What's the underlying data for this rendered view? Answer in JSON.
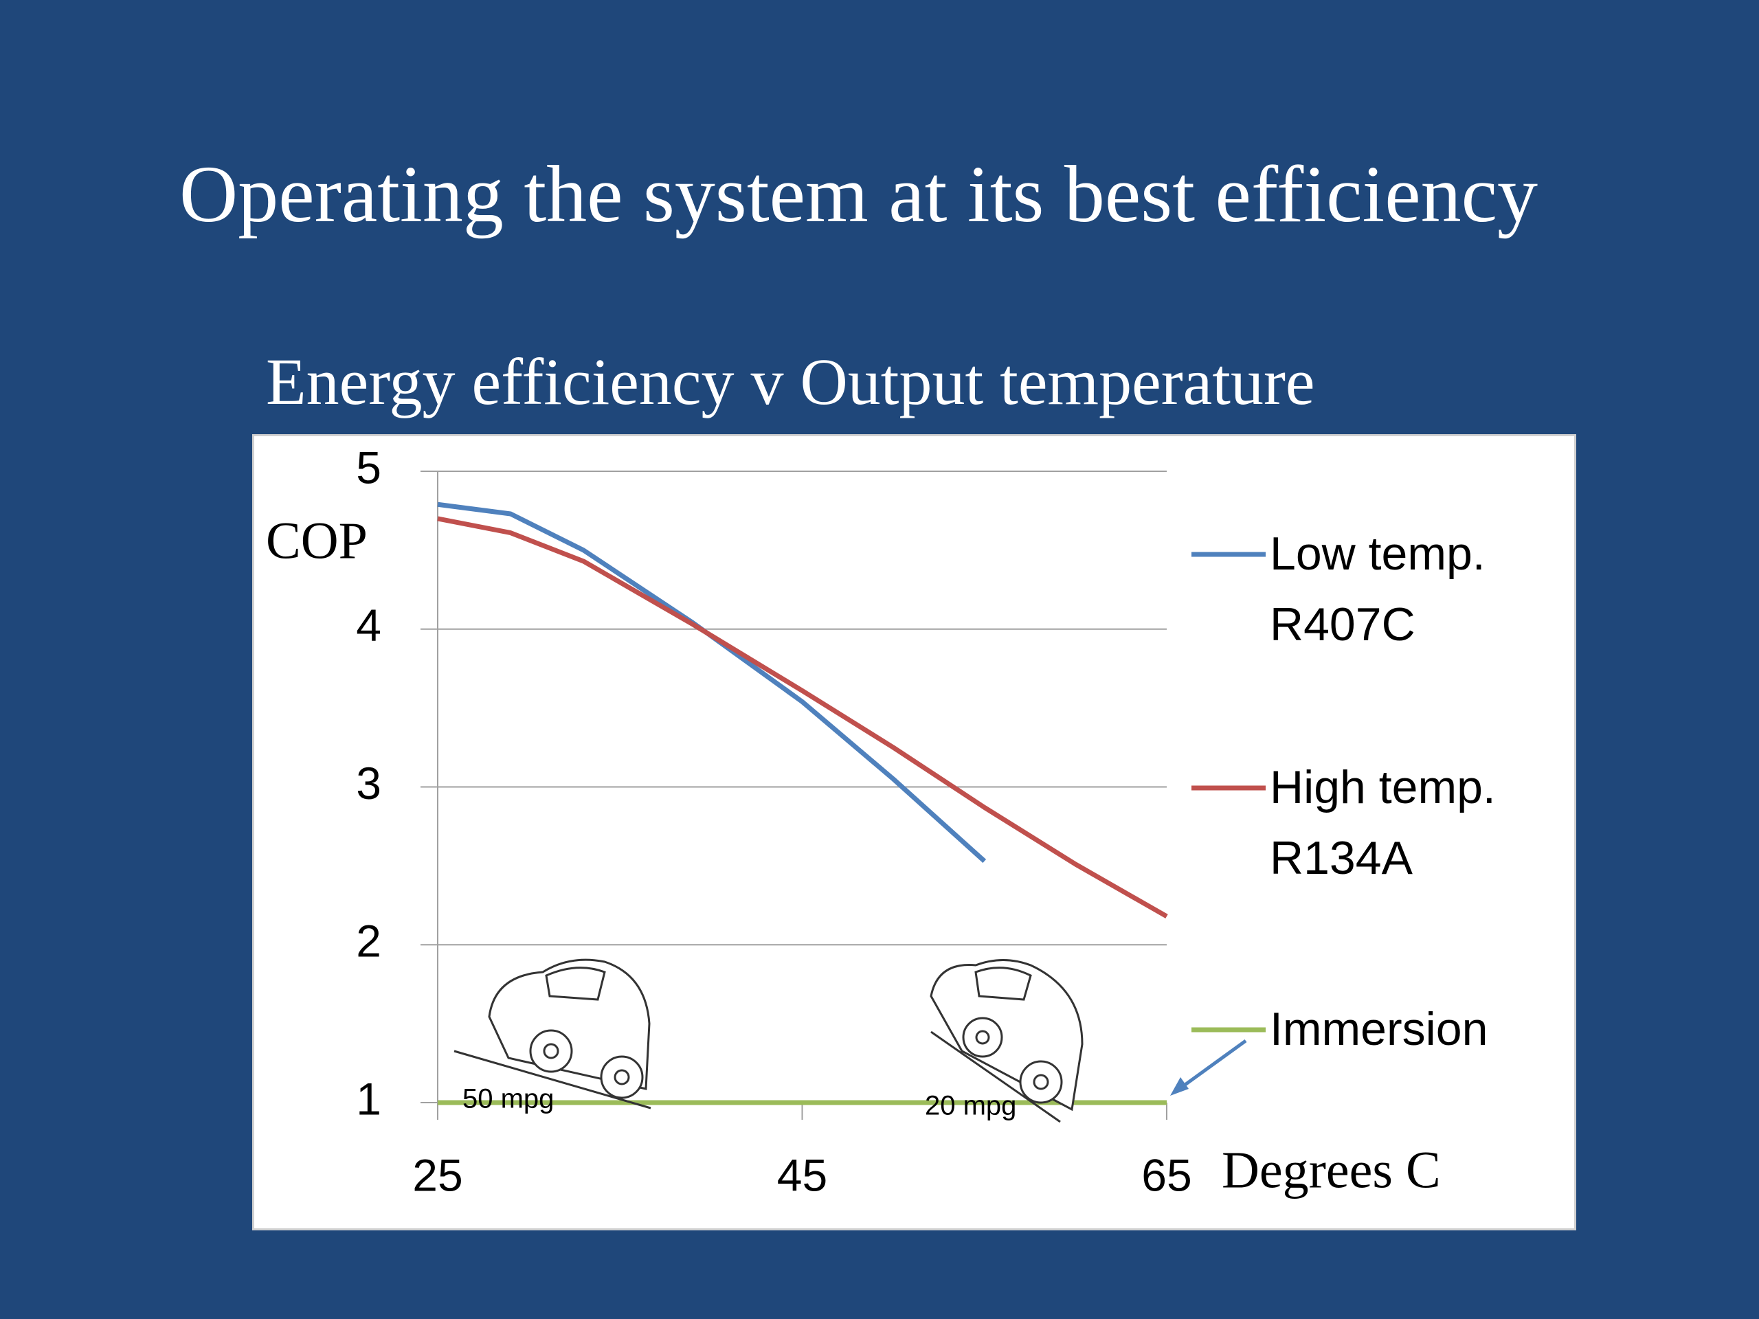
{
  "title": "Operating the system at its best efficiency",
  "chart_data": {
    "type": "line",
    "title": "Energy efficiency  v Output temperature",
    "y_label": "COP",
    "x_label": "Degrees C",
    "annotations": [
      "50 mpg",
      "20 mpg"
    ],
    "xlim": [
      25,
      65
    ],
    "xticks": [
      25,
      45,
      65
    ],
    "ylim": [
      1,
      5
    ],
    "yticks": [
      1,
      2,
      3,
      4,
      5
    ],
    "grid": true,
    "legend": "right",
    "series": [
      {
        "name": "Low temp. R407C",
        "color": "#4f81bd",
        "x": [
          25,
          29,
          33,
          39,
          45,
          50,
          55
        ],
        "values": [
          4.79,
          4.73,
          4.5,
          4.04,
          3.54,
          3.05,
          2.53
        ]
      },
      {
        "name": "High temp. R134A",
        "color": "#c0504d",
        "x": [
          25,
          29,
          33,
          39,
          45,
          50,
          55,
          60,
          65
        ],
        "values": [
          4.7,
          4.61,
          4.43,
          4.03,
          3.61,
          3.25,
          2.87,
          2.51,
          2.18
        ]
      },
      {
        "name": "Immersion",
        "color": "#9bbb59",
        "x": [
          25,
          65
        ],
        "values": [
          1,
          1
        ]
      }
    ]
  }
}
